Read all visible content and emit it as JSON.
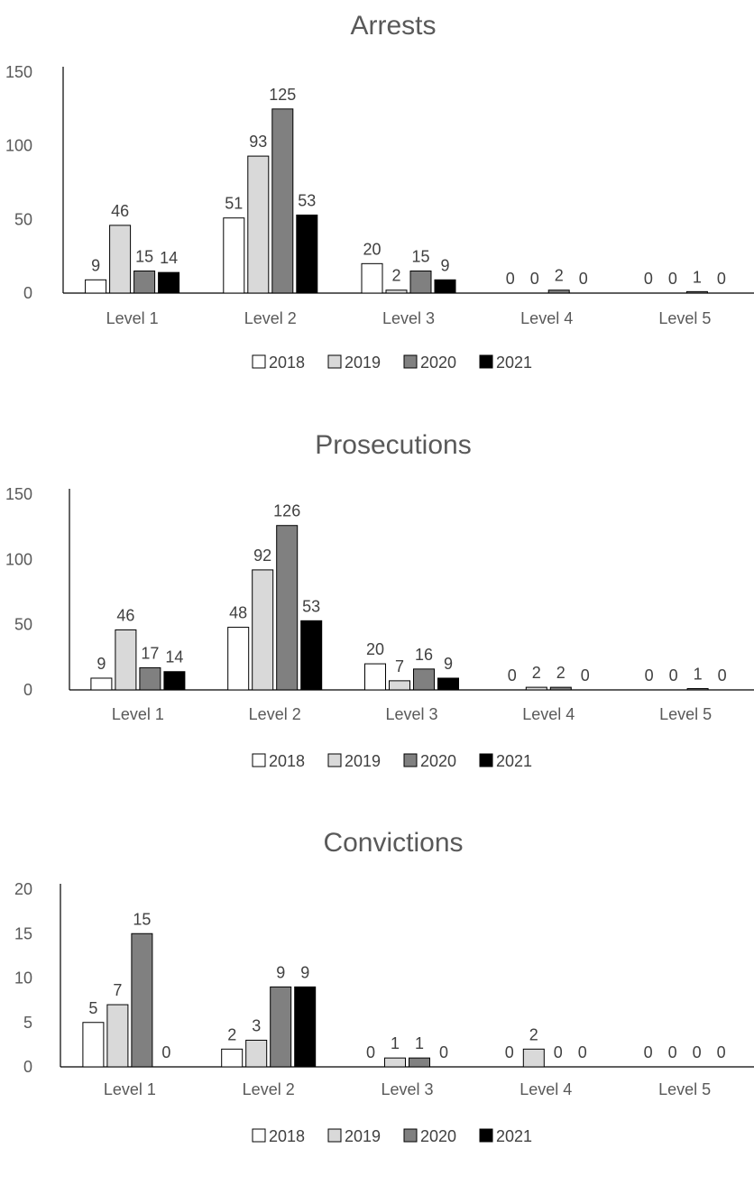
{
  "chart_data": [
    {
      "type": "bar",
      "title": "Arrests",
      "categories": [
        "Level 1",
        "Level 2",
        "Level 3",
        "Level 4",
        "Level 5"
      ],
      "series": [
        {
          "name": "2018",
          "values": [
            9,
            51,
            20,
            0,
            0
          ],
          "color": "#ffffff"
        },
        {
          "name": "2019",
          "values": [
            46,
            93,
            2,
            0,
            0
          ],
          "color": "#d9d9d9"
        },
        {
          "name": "2020",
          "values": [
            15,
            125,
            15,
            2,
            1
          ],
          "color": "#808080"
        },
        {
          "name": "2021",
          "values": [
            14,
            53,
            9,
            0,
            0
          ],
          "color": "#000000"
        }
      ],
      "yticks": [
        0,
        50,
        100,
        150
      ],
      "ylim": [
        0,
        150
      ],
      "legend_position": "bottom",
      "grid": false
    },
    {
      "type": "bar",
      "title": "Prosecutions",
      "categories": [
        "Level 1",
        "Level 2",
        "Level 3",
        "Level 4",
        "Level 5"
      ],
      "series": [
        {
          "name": "2018",
          "values": [
            9,
            48,
            20,
            0,
            0
          ],
          "color": "#ffffff"
        },
        {
          "name": "2019",
          "values": [
            46,
            92,
            7,
            2,
            0
          ],
          "color": "#d9d9d9"
        },
        {
          "name": "2020",
          "values": [
            17,
            126,
            16,
            2,
            1
          ],
          "color": "#808080"
        },
        {
          "name": "2021",
          "values": [
            14,
            53,
            9,
            0,
            0
          ],
          "color": "#000000"
        }
      ],
      "yticks": [
        0,
        50,
        100,
        150
      ],
      "ylim": [
        0,
        150
      ],
      "legend_position": "bottom",
      "grid": false
    },
    {
      "type": "bar",
      "title": "Convictions",
      "categories": [
        "Level 1",
        "Level 2",
        "Level 3",
        "Level 4",
        "Level 5"
      ],
      "series": [
        {
          "name": "2018",
          "values": [
            5,
            2,
            0,
            0,
            0
          ],
          "color": "#ffffff"
        },
        {
          "name": "2019",
          "values": [
            7,
            3,
            1,
            2,
            0
          ],
          "color": "#d9d9d9"
        },
        {
          "name": "2020",
          "values": [
            15,
            9,
            1,
            0,
            0
          ],
          "color": "#808080"
        },
        {
          "name": "2021",
          "values": [
            0,
            9,
            0,
            0,
            0
          ],
          "color": "#000000"
        }
      ],
      "yticks": [
        0,
        5,
        10,
        15,
        20
      ],
      "ylim": [
        0,
        20
      ],
      "legend_position": "bottom",
      "grid": false
    }
  ]
}
